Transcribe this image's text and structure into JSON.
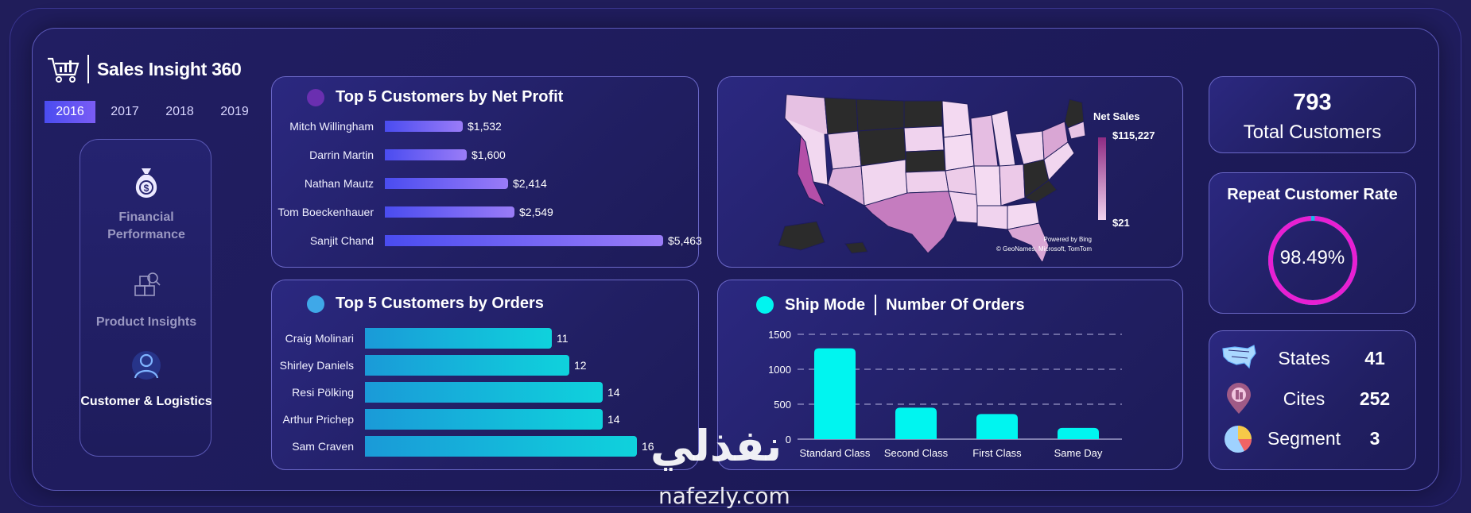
{
  "app": {
    "title": "Sales Insight 360"
  },
  "years": [
    "2016",
    "2017",
    "2018",
    "2019"
  ],
  "active_year": "2016",
  "nav": {
    "financial": "Financial Performance",
    "product": "Product Insights",
    "customer": "Customer & Logistics"
  },
  "profit_card": {
    "title": "Top 5 Customers by Net Profit",
    "dot_color": "#6a2fb0",
    "rows": [
      {
        "name": "Mitch Willingham",
        "label": "$1,532",
        "value": 1532
      },
      {
        "name": "Darrin Martin",
        "label": "$1,600",
        "value": 1600
      },
      {
        "name": "Nathan Mautz",
        "label": "$2,414",
        "value": 2414
      },
      {
        "name": "Tom Boeckenhauer",
        "label": "$2,549",
        "value": 2549
      },
      {
        "name": "Sanjit Chand",
        "label": "$5,463",
        "value": 5463
      }
    ]
  },
  "orders_card": {
    "title": "Top 5 Customers by Orders",
    "dot_color": "#3fa8e8",
    "rows": [
      {
        "name": "Craig Molinari",
        "label": "11",
        "value": 11
      },
      {
        "name": "Shirley Daniels",
        "label": "12",
        "value": 12
      },
      {
        "name": "Resi Pölking",
        "label": "14",
        "value": 14
      },
      {
        "name": "Arthur Prichep",
        "label": "14",
        "value": 14
      },
      {
        "name": "Sam Craven",
        "label": "16",
        "value": 16
      }
    ]
  },
  "map_card": {
    "legend_title": "Net Sales",
    "legend_max": "$115,227",
    "legend_min": "$21",
    "credit_1": "Powered by Bing",
    "credit_2": "© GeoNames, Microsoft, TomTom"
  },
  "ship_card": {
    "title_a": "Ship Mode",
    "title_b": "Number Of Orders",
    "dot_color": "#00f5f0"
  },
  "chart_data": {
    "type": "bar",
    "categories": [
      "Standard Class",
      "Second Class",
      "First Class",
      "Same Day"
    ],
    "values": [
      1300,
      450,
      360,
      160
    ],
    "ylim": [
      0,
      1500
    ],
    "yticks": [
      "0",
      "500",
      "1000",
      "1500"
    ],
    "grid": true,
    "bar_color": "#00f5f0"
  },
  "kpi": {
    "total_customers_value": "793",
    "total_customers_label": "Total Customers",
    "repeat_title": "Repeat Customer Rate",
    "repeat_value": "98.49%",
    "repeat_fraction": 0.9849
  },
  "stats": [
    {
      "icon": "usa-map-icon",
      "name": "States",
      "value": "41"
    },
    {
      "icon": "city-pin-icon",
      "name": "Cites",
      "value": "252"
    },
    {
      "icon": "pie-chart-icon",
      "name": "Segment",
      "value": "3"
    }
  ],
  "watermark": {
    "arabic": "نفذلي",
    "latin": "nafezly.com"
  }
}
